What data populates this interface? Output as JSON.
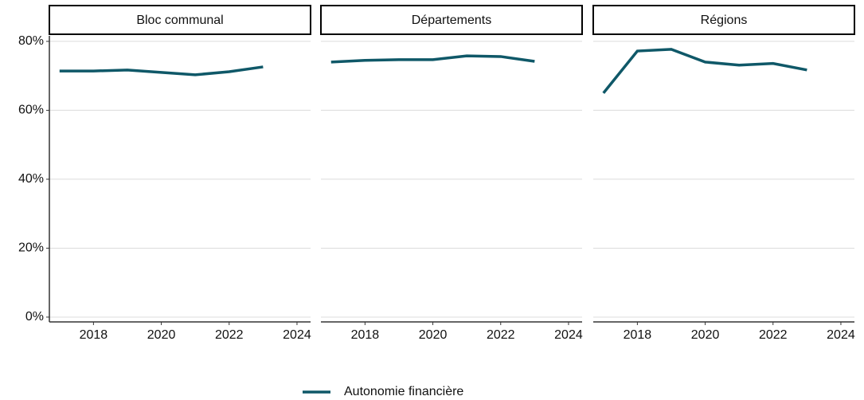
{
  "chart_data": [
    {
      "type": "line",
      "title": "Bloc communal",
      "x": [
        2017,
        2018,
        2019,
        2020,
        2021,
        2022,
        2023
      ],
      "series": [
        {
          "name": "Autonomie financière",
          "color": "#0f5868",
          "values": [
            71.4,
            71.4,
            71.7,
            71.0,
            70.3,
            71.2,
            72.6
          ]
        }
      ],
      "xlim": [
        2016.7,
        2024.4
      ],
      "xticks": [
        2018,
        2020,
        2022,
        2024
      ],
      "ylim": [
        -1.4,
        81.6
      ],
      "yticks": [
        {
          "value": 0,
          "label": "0%"
        },
        {
          "value": 20,
          "label": "20%"
        },
        {
          "value": 40,
          "label": "40%"
        },
        {
          "value": 60,
          "label": "60%"
        },
        {
          "value": 80,
          "label": "80%"
        }
      ],
      "grid": true
    },
    {
      "type": "line",
      "title": "Départements",
      "x": [
        2017,
        2018,
        2019,
        2020,
        2021,
        2022,
        2023
      ],
      "series": [
        {
          "name": "Autonomie financière",
          "color": "#0f5868",
          "values": [
            74.0,
            74.5,
            74.7,
            74.7,
            75.8,
            75.6,
            74.2
          ]
        }
      ],
      "xlim": [
        2016.7,
        2024.4
      ],
      "xticks": [
        2018,
        2020,
        2022,
        2024
      ],
      "ylim": [
        -1.4,
        81.6
      ],
      "yticks": [
        0,
        20,
        40,
        60,
        80
      ],
      "grid": true
    },
    {
      "type": "line",
      "title": "Régions",
      "x": [
        2017,
        2018,
        2019,
        2020,
        2021,
        2022,
        2023
      ],
      "series": [
        {
          "name": "Autonomie financière",
          "color": "#0f5868",
          "values": [
            65.0,
            77.2,
            77.7,
            74.0,
            73.1,
            73.6,
            71.7
          ]
        }
      ],
      "xlim": [
        2016.7,
        2024.4
      ],
      "xticks": [
        2018,
        2020,
        2022,
        2024
      ],
      "ylim": [
        -1.4,
        81.6
      ],
      "yticks": [
        0,
        20,
        40,
        60,
        80
      ],
      "grid": true
    }
  ]
}
